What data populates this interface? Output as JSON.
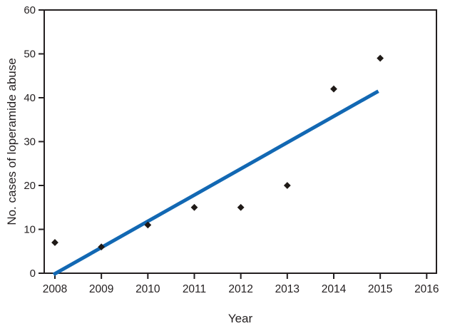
{
  "chart_data": {
    "type": "scatter",
    "title": "",
    "xlabel": "Year",
    "ylabel": "No. cases of loperamide abuse",
    "x": [
      2008,
      2009,
      2010,
      2011,
      2012,
      2013,
      2014,
      2015
    ],
    "values": [
      7,
      6,
      11,
      15,
      15,
      20,
      42,
      49
    ],
    "series_name": "No. cases of loperamide abuse",
    "trendline": {
      "x1": 2007.97,
      "y1": -0.3,
      "x2": 2014.96,
      "y2": 41.5
    },
    "xticks": [
      2008,
      2009,
      2010,
      2011,
      2012,
      2013,
      2014,
      2015,
      2016
    ],
    "yticks": [
      0,
      10,
      20,
      30,
      40,
      50,
      60
    ],
    "xlim": [
      2007.77,
      2016.21
    ],
    "ylim": [
      0,
      60
    ],
    "grid": false,
    "legend": false,
    "marker": "diamond",
    "marker_color": "#1f1a17",
    "trendline_color": "#1268b3",
    "axis_color": "#231f20",
    "background_color": "#ffffff"
  }
}
